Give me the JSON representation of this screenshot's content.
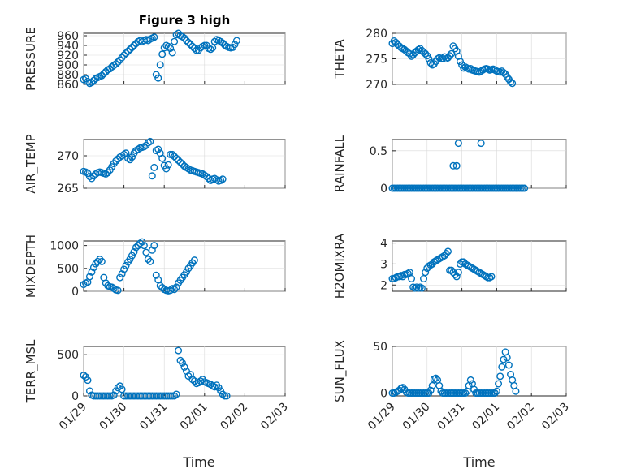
{
  "figure": {
    "title": "Figure 3 high",
    "marker_color": "#0072bd",
    "xtick_labels": [
      "01/29",
      "01/30",
      "01/31",
      "02/01",
      "02/02",
      "02/03"
    ],
    "xlabel": "Time"
  },
  "chart_data": [
    {
      "type": "scatter",
      "ylabel": "PRESSURE",
      "ylim": [
        860,
        965
      ],
      "yticks": [
        860,
        880,
        900,
        920,
        940,
        960
      ],
      "xlim": [
        0,
        5
      ],
      "x": [
        0.0,
        0.05,
        0.1,
        0.15,
        0.2,
        0.25,
        0.3,
        0.35,
        0.4,
        0.45,
        0.5,
        0.55,
        0.6,
        0.65,
        0.7,
        0.75,
        0.8,
        0.85,
        0.9,
        0.95,
        1.0,
        1.05,
        1.1,
        1.15,
        1.2,
        1.25,
        1.3,
        1.35,
        1.4,
        1.45,
        1.5,
        1.55,
        1.6,
        1.65,
        1.7,
        1.75,
        1.8,
        1.85,
        1.9,
        1.95,
        2.0,
        2.05,
        2.1,
        2.15,
        2.2,
        2.25,
        2.3,
        2.35,
        2.4,
        2.45,
        2.5,
        2.55,
        2.6,
        2.65,
        2.7,
        2.75,
        2.8,
        2.85,
        2.9,
        2.95,
        3.0,
        3.05,
        3.1,
        3.15,
        3.2,
        3.25,
        3.3,
        3.35,
        3.4,
        3.45,
        3.5,
        3.55,
        3.6,
        3.65,
        3.7,
        3.75,
        3.8
      ],
      "y": [
        870,
        872,
        866,
        862,
        864,
        868,
        872,
        874,
        876,
        878,
        882,
        886,
        890,
        892,
        896,
        899,
        902,
        906,
        910,
        915,
        920,
        924,
        928,
        932,
        936,
        940,
        944,
        948,
        950,
        948,
        950,
        952,
        950,
        953,
        955,
        957,
        880,
        873,
        900,
        922,
        935,
        940,
        938,
        934,
        925,
        948,
        962,
        965,
        960,
        958,
        955,
        950,
        946,
        942,
        938,
        934,
        930,
        930,
        935,
        938,
        940,
        940,
        934,
        932,
        935,
        948,
        952,
        950,
        948,
        945,
        941,
        938,
        936,
        935,
        936,
        942,
        950
      ]
    },
    {
      "type": "scatter",
      "ylabel": "THETA",
      "ylim": [
        270,
        280
      ],
      "yticks": [
        270,
        275,
        280
      ],
      "xlim": [
        0,
        5
      ],
      "x": [
        0.0,
        0.05,
        0.1,
        0.15,
        0.2,
        0.25,
        0.3,
        0.35,
        0.4,
        0.45,
        0.5,
        0.55,
        0.6,
        0.65,
        0.7,
        0.75,
        0.8,
        0.85,
        0.9,
        0.95,
        1.0,
        1.05,
        1.1,
        1.15,
        1.2,
        1.25,
        1.3,
        1.35,
        1.4,
        1.45,
        1.5,
        1.55,
        1.6,
        1.65,
        1.7,
        1.75,
        1.8,
        1.85,
        1.9,
        1.95,
        2.0,
        2.05,
        2.1,
        2.15,
        2.2,
        2.25,
        2.3,
        2.35,
        2.4,
        2.45,
        2.5,
        2.55,
        2.6,
        2.65,
        2.7,
        2.75,
        2.8,
        2.85,
        2.9,
        2.95,
        3.0,
        3.05,
        3.1,
        3.15,
        3.2,
        3.25,
        3.3,
        3.35,
        3.4,
        3.45,
        3.5,
        3.55,
        3.6,
        3.65,
        3.7,
        3.75,
        3.8
      ],
      "y": [
        278,
        278.5,
        278.2,
        277.8,
        277.5,
        277.2,
        277,
        276.8,
        276.5,
        276.2,
        276,
        275.5,
        275.8,
        276.2,
        276.5,
        276.8,
        277,
        276.6,
        276.3,
        276,
        275.6,
        275,
        274.2,
        273.8,
        274,
        274.5,
        275,
        275.2,
        275,
        275.1,
        275.4,
        275,
        275.2,
        275.6,
        276,
        277.5,
        277,
        276.5,
        275.5,
        274.5,
        273.8,
        273.2,
        273.4,
        273.2,
        273,
        273.1,
        272.8,
        272.7,
        272.6,
        272.5,
        272.4,
        272.6,
        272.8,
        273,
        273.1,
        273,
        272.8,
        272.9,
        273,
        272.8,
        272.6,
        272.5,
        272.4,
        272.6,
        272.3,
        272,
        271.5,
        271,
        270.5,
        270.2,
        270,
        270,
        270.1,
        270,
        270,
        270,
        270
      ],
      "x_visible_count": 70
    },
    {
      "type": "scatter",
      "ylabel": "AIR_TEMP",
      "ylim": [
        265,
        272.5
      ],
      "yticks": [
        265,
        270
      ],
      "xlim": [
        0,
        5
      ],
      "x": [
        0.0,
        0.05,
        0.1,
        0.15,
        0.2,
        0.25,
        0.3,
        0.35,
        0.4,
        0.45,
        0.5,
        0.55,
        0.6,
        0.65,
        0.7,
        0.75,
        0.8,
        0.85,
        0.9,
        0.95,
        1.0,
        1.05,
        1.1,
        1.15,
        1.2,
        1.25,
        1.3,
        1.35,
        1.4,
        1.45,
        1.5,
        1.55,
        1.6,
        1.65,
        1.7,
        1.75,
        1.8,
        1.85,
        1.9,
        1.95,
        2.0,
        2.05,
        2.1,
        2.15,
        2.2,
        2.25,
        2.3,
        2.35,
        2.4,
        2.45,
        2.5,
        2.55,
        2.6,
        2.65,
        2.7,
        2.75,
        2.8,
        2.85,
        2.9,
        2.95,
        3.0,
        3.05,
        3.1,
        3.15,
        3.2,
        3.25,
        3.3,
        3.35,
        3.4,
        3.45,
        3.5,
        3.55,
        3.6,
        3.65,
        3.7,
        3.75,
        3.8
      ],
      "y": [
        267.6,
        267.5,
        267.3,
        266.8,
        266.5,
        266.9,
        267.2,
        267.4,
        267.5,
        267.4,
        267.3,
        267.2,
        267.4,
        267.8,
        268.3,
        268.8,
        269.2,
        269.5,
        269.8,
        270,
        270.2,
        270.4,
        269.6,
        269.4,
        269.8,
        270.4,
        270.8,
        271,
        271.2,
        271.3,
        271.4,
        271.6,
        272,
        272.2,
        266.9,
        268.2,
        270.8,
        271,
        270.4,
        269.6,
        268.5,
        268,
        268.6,
        270.2,
        270.2,
        269.9,
        269.6,
        269.3,
        269,
        268.7,
        268.4,
        268.2,
        268,
        267.8,
        267.7,
        267.6,
        267.5,
        267.4,
        267.3,
        267.2,
        267,
        266.8,
        266.5,
        266.2,
        266.4,
        266.5,
        266.3,
        266.1,
        266.2,
        266.4,
        266.5,
        266.6,
        266.4,
        266.3,
        266.2,
        266.1,
        266
      ],
      "x_visible_count": 70
    },
    {
      "type": "scatter",
      "ylabel": "RAINFALL",
      "ylim": [
        0,
        0.65
      ],
      "yticks": [
        0,
        0.5
      ],
      "ytick_labels": [
        "0",
        "0.5"
      ],
      "xlim": [
        0,
        5
      ],
      "x": [
        0.0,
        0.05,
        0.1,
        0.15,
        0.2,
        0.25,
        0.3,
        0.35,
        0.4,
        0.45,
        0.5,
        0.55,
        0.6,
        0.65,
        0.7,
        0.75,
        0.8,
        0.85,
        0.9,
        0.95,
        1.0,
        1.05,
        1.1,
        1.15,
        1.2,
        1.25,
        1.3,
        1.35,
        1.4,
        1.45,
        1.5,
        1.55,
        1.6,
        1.65,
        1.7,
        1.75,
        1.8,
        1.85,
        1.9,
        1.95,
        2.0,
        2.05,
        2.1,
        2.15,
        2.2,
        2.25,
        2.3,
        2.35,
        2.4,
        2.45,
        2.5,
        2.55,
        2.6,
        2.65,
        2.7,
        2.75,
        2.8,
        2.85,
        2.9,
        2.95,
        3.0,
        3.05,
        3.1,
        3.15,
        3.2,
        3.25,
        3.3,
        3.35,
        3.4,
        3.45,
        3.5,
        3.55,
        3.6,
        3.65,
        3.7,
        3.75,
        3.8,
        1.75,
        1.85,
        1.9,
        2.55
      ],
      "y": [
        0,
        0,
        0,
        0,
        0,
        0,
        0,
        0,
        0,
        0,
        0,
        0,
        0,
        0,
        0,
        0,
        0,
        0,
        0,
        0,
        0,
        0,
        0,
        0,
        0,
        0,
        0,
        0,
        0,
        0,
        0,
        0,
        0,
        0,
        0,
        0,
        0,
        0,
        0,
        0,
        0,
        0,
        0,
        0,
        0,
        0,
        0,
        0,
        0,
        0,
        0,
        0,
        0,
        0,
        0,
        0,
        0,
        0,
        0,
        0,
        0,
        0,
        0,
        0,
        0,
        0,
        0,
        0,
        0,
        0,
        0,
        0,
        0,
        0,
        0,
        0,
        0,
        0.3,
        0.3,
        0.6,
        0.6
      ]
    },
    {
      "type": "scatter",
      "ylabel": "MIXDEPTH",
      "ylim": [
        0,
        1100
      ],
      "yticks": [
        0,
        500,
        1000
      ],
      "xlim": [
        0,
        5
      ],
      "x": [
        0.0,
        0.05,
        0.1,
        0.15,
        0.2,
        0.25,
        0.3,
        0.35,
        0.4,
        0.45,
        0.5,
        0.55,
        0.6,
        0.65,
        0.7,
        0.75,
        0.8,
        0.85,
        0.9,
        0.95,
        1.0,
        1.05,
        1.1,
        1.15,
        1.2,
        1.25,
        1.3,
        1.35,
        1.4,
        1.45,
        1.5,
        1.55,
        1.6,
        1.65,
        1.7,
        1.75,
        1.8,
        1.85,
        1.9,
        1.95,
        2.0,
        2.05,
        2.1,
        2.15,
        2.2,
        2.25,
        2.3,
        2.35,
        2.4,
        2.45,
        2.5,
        2.55,
        2.6,
        2.65,
        2.7,
        2.75,
        2.8,
        2.85,
        2.9,
        2.95,
        3.0,
        3.05,
        3.1,
        3.15,
        3.2,
        3.25,
        3.3,
        3.35,
        3.4,
        3.45,
        3.5,
        3.55,
        3.6,
        3.65,
        3.7,
        3.75,
        3.8
      ],
      "y": [
        150,
        180,
        200,
        320,
        420,
        520,
        600,
        650,
        700,
        650,
        300,
        180,
        120,
        100,
        90,
        60,
        30,
        20,
        300,
        380,
        480,
        560,
        640,
        700,
        780,
        860,
        960,
        1000,
        1050,
        1080,
        1000,
        850,
        700,
        650,
        900,
        1000,
        350,
        250,
        120,
        80,
        40,
        20,
        10,
        20,
        60,
        40,
        90,
        180,
        240,
        300,
        360,
        420,
        500,
        560,
        620,
        680,
        0,
        0,
        0,
        0,
        0,
        0,
        0,
        0,
        0,
        0,
        0,
        0,
        0,
        0,
        0,
        0,
        0,
        0,
        0,
        0,
        0
      ],
      "x_visible_count": 56
    },
    {
      "type": "scatter",
      "ylabel": "H2OMIXRA",
      "ylim": [
        1.7,
        4.1
      ],
      "yticks": [
        2,
        3,
        4
      ],
      "xlim": [
        0,
        5
      ],
      "x": [
        0.0,
        0.05,
        0.1,
        0.15,
        0.2,
        0.25,
        0.3,
        0.35,
        0.4,
        0.45,
        0.5,
        0.55,
        0.6,
        0.65,
        0.7,
        0.75,
        0.8,
        0.85,
        0.9,
        0.95,
        1.0,
        1.05,
        1.1,
        1.15,
        1.2,
        1.25,
        1.3,
        1.35,
        1.4,
        1.45,
        1.5,
        1.55,
        1.6,
        1.65,
        1.7,
        1.75,
        1.8,
        1.85,
        1.9,
        1.95,
        2.0,
        2.05,
        2.1,
        2.15,
        2.2,
        2.25,
        2.3,
        2.35,
        2.4,
        2.45,
        2.5,
        2.55,
        2.6,
        2.65,
        2.7,
        2.75,
        2.8,
        2.85,
        2.9,
        2.95,
        3.0,
        3.05,
        3.1,
        3.15,
        3.2,
        3.25,
        3.3,
        3.35,
        3.4,
        3.45,
        3.5,
        3.55,
        3.6,
        3.65,
        3.7,
        3.75,
        3.8
      ],
      "y": [
        2.3,
        2.3,
        2.35,
        2.4,
        2.4,
        2.45,
        2.4,
        2.5,
        2.5,
        2.55,
        2.6,
        2.3,
        1.9,
        1.85,
        1.9,
        1.85,
        1.9,
        1.85,
        2.3,
        2.6,
        2.8,
        2.9,
        2.95,
        3.0,
        3.1,
        3.15,
        3.2,
        3.25,
        3.3,
        3.35,
        3.4,
        3.5,
        3.6,
        2.7,
        2.7,
        2.6,
        2.5,
        2.4,
        2.6,
        3.0,
        3.1,
        3.1,
        3.0,
        2.95,
        2.9,
        2.85,
        2.8,
        2.75,
        2.7,
        2.65,
        2.6,
        2.55,
        2.5,
        2.45,
        2.4,
        2.35,
        2.35,
        2.4,
        2.4,
        2.35,
        2.3,
        2.3,
        2.3,
        2.3,
        2.3,
        2.3,
        2.3,
        2.3,
        2.3,
        2.3,
        2.3,
        2.3,
        2.3,
        2.3,
        2.3,
        2.3,
        2.3
      ],
      "x_visible_count": 58
    },
    {
      "type": "scatter",
      "ylabel": "TERR_MSL",
      "ylim": [
        0,
        600
      ],
      "yticks": [
        0,
        500
      ],
      "xlim": [
        0,
        5
      ],
      "x": [
        0.0,
        0.05,
        0.1,
        0.15,
        0.2,
        0.25,
        0.3,
        0.35,
        0.4,
        0.45,
        0.5,
        0.55,
        0.6,
        0.65,
        0.7,
        0.75,
        0.8,
        0.85,
        0.9,
        0.95,
        1.0,
        1.05,
        1.1,
        1.15,
        1.2,
        1.25,
        1.3,
        1.35,
        1.4,
        1.45,
        1.5,
        1.55,
        1.6,
        1.65,
        1.7,
        1.75,
        1.8,
        1.85,
        1.9,
        1.95,
        2.0,
        2.05,
        2.1,
        2.15,
        2.2,
        2.25,
        2.3,
        2.35,
        2.4,
        2.45,
        2.5,
        2.55,
        2.6,
        2.65,
        2.7,
        2.75,
        2.8,
        2.85,
        2.9,
        2.95,
        3.0,
        3.05,
        3.1,
        3.15,
        3.2,
        3.25,
        3.3,
        3.35,
        3.4,
        3.45,
        3.5,
        3.55,
        3.6,
        3.65,
        3.7,
        3.75,
        3.8
      ],
      "y": [
        250,
        230,
        190,
        60,
        10,
        0,
        0,
        0,
        0,
        0,
        0,
        0,
        0,
        0,
        0,
        10,
        60,
        100,
        120,
        80,
        0,
        0,
        0,
        0,
        0,
        0,
        0,
        0,
        0,
        0,
        0,
        0,
        0,
        0,
        0,
        0,
        0,
        0,
        0,
        0,
        0,
        0,
        0,
        0,
        0,
        0,
        20,
        550,
        430,
        400,
        350,
        300,
        240,
        260,
        200,
        180,
        150,
        160,
        180,
        200,
        170,
        160,
        150,
        140,
        120,
        110,
        130,
        100,
        60,
        20,
        0,
        0,
        0,
        0,
        0,
        0,
        0
      ],
      "x_visible_count": 72
    },
    {
      "type": "scatter",
      "ylabel": "SUN_FLUX",
      "ylim": [
        -3,
        50
      ],
      "yticks": [
        0,
        50
      ],
      "xlim": [
        0,
        5
      ],
      "x": [
        0.0,
        0.05,
        0.1,
        0.15,
        0.2,
        0.25,
        0.3,
        0.35,
        0.4,
        0.45,
        0.5,
        0.55,
        0.6,
        0.65,
        0.7,
        0.75,
        0.8,
        0.85,
        0.9,
        0.95,
        1.0,
        1.05,
        1.1,
        1.15,
        1.2,
        1.25,
        1.3,
        1.35,
        1.4,
        1.45,
        1.5,
        1.55,
        1.6,
        1.65,
        1.7,
        1.75,
        1.8,
        1.85,
        1.9,
        1.95,
        2.0,
        2.05,
        2.1,
        2.15,
        2.2,
        2.25,
        2.3,
        2.35,
        2.4,
        2.45,
        2.5,
        2.55,
        2.6,
        2.65,
        2.7,
        2.75,
        2.8,
        2.85,
        2.9,
        2.95,
        3.0,
        3.05,
        3.1,
        3.15,
        3.2,
        3.25,
        3.3,
        3.35,
        3.4,
        3.45,
        3.5,
        3.55,
        3.6,
        3.65,
        3.7,
        3.75,
        3.8
      ],
      "y": [
        0,
        0,
        1,
        2,
        3,
        5,
        6,
        4,
        1,
        0,
        0,
        0,
        0,
        0,
        0,
        0,
        0,
        0,
        0,
        0,
        0,
        0,
        3,
        8,
        15,
        16,
        14,
        8,
        2,
        0,
        0,
        0,
        0,
        0,
        0,
        0,
        0,
        0,
        0,
        0,
        0,
        0,
        0,
        2,
        8,
        14,
        10,
        4,
        0,
        0,
        0,
        0,
        0,
        0,
        0,
        0,
        0,
        0,
        0,
        0,
        2,
        10,
        18,
        28,
        36,
        44,
        38,
        30,
        20,
        14,
        8,
        2,
        0,
        0,
        0,
        0,
        0
      ],
      "x_visible_count": 72
    }
  ]
}
